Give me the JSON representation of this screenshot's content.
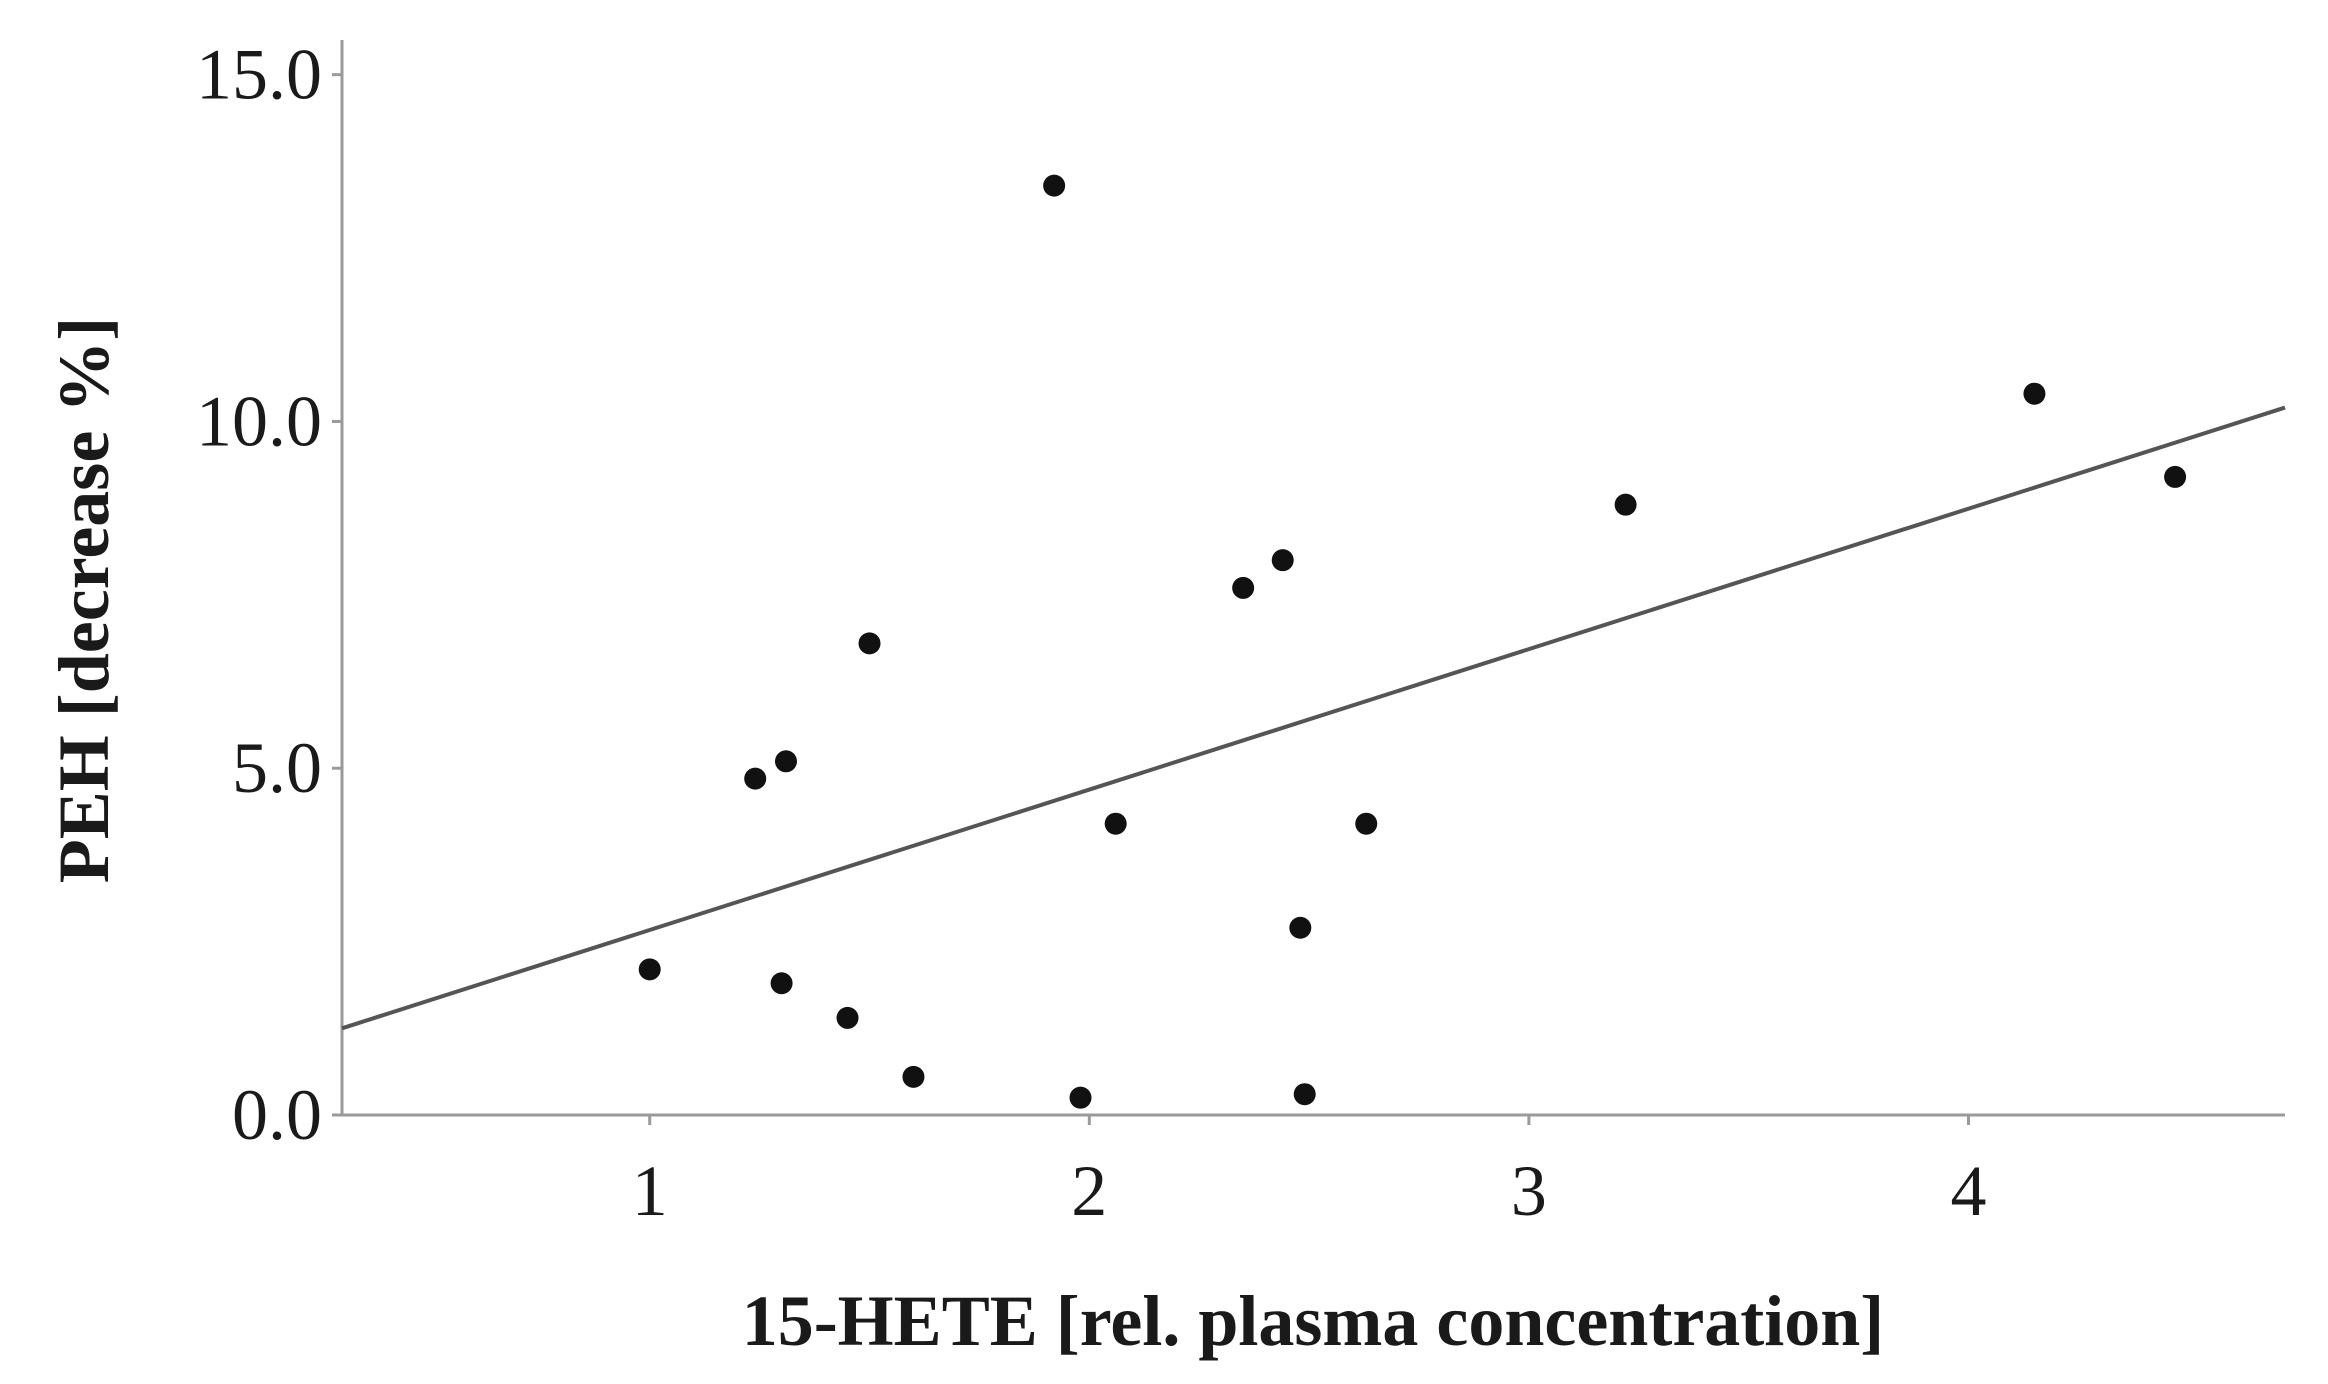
{
  "chart_data": {
    "type": "scatter",
    "xlabel": "15-HETE [rel. plasma concentration]",
    "ylabel": "PEH [decrease %]",
    "xlim": [
      0.3,
      4.72
    ],
    "ylim": [
      0,
      15.5
    ],
    "x_ticks": [
      1,
      2,
      3,
      4
    ],
    "x_tick_labels": [
      "1",
      "2",
      "3",
      "4"
    ],
    "y_ticks": [
      0,
      5,
      10,
      15
    ],
    "y_tick_labels": [
      "0.0",
      "5.0",
      "10.0",
      "15.0"
    ],
    "grid": false,
    "points": [
      {
        "x": 1.92,
        "y": 13.4
      },
      {
        "x": 4.15,
        "y": 10.4
      },
      {
        "x": 4.47,
        "y": 9.2
      },
      {
        "x": 3.22,
        "y": 8.8
      },
      {
        "x": 2.44,
        "y": 8.0
      },
      {
        "x": 2.35,
        "y": 7.6
      },
      {
        "x": 1.5,
        "y": 6.8
      },
      {
        "x": 1.31,
        "y": 5.1
      },
      {
        "x": 1.24,
        "y": 4.85
      },
      {
        "x": 2.06,
        "y": 4.2
      },
      {
        "x": 2.63,
        "y": 4.2
      },
      {
        "x": 2.48,
        "y": 2.7
      },
      {
        "x": 1.0,
        "y": 2.1
      },
      {
        "x": 1.3,
        "y": 1.9
      },
      {
        "x": 1.45,
        "y": 1.4
      },
      {
        "x": 1.6,
        "y": 0.55
      },
      {
        "x": 1.98,
        "y": 0.25
      },
      {
        "x": 2.49,
        "y": 0.3
      }
    ],
    "fit_line": {
      "x": [
        0.3,
        4.72
      ],
      "y": [
        1.25,
        10.2
      ]
    }
  }
}
